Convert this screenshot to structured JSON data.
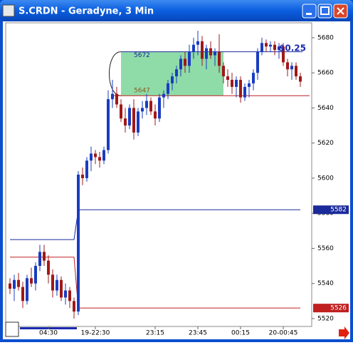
{
  "chart_data": {
    "type": "candlestick",
    "title": "S.CRDN - Geradyne, 3 Min",
    "categories": [
      null,
      null,
      null,
      null,
      null,
      null,
      null,
      null,
      null,
      "04:30",
      null,
      null,
      null,
      null,
      null,
      null,
      null,
      null,
      null,
      null,
      "19-22:30",
      null,
      null,
      null,
      null,
      null,
      null,
      null,
      null,
      null,
      null,
      null,
      null,
      null,
      "23:15",
      null,
      null,
      null,
      null,
      null,
      null,
      null,
      null,
      null,
      "23:45",
      null,
      null,
      null,
      null,
      null,
      null,
      null,
      null,
      null,
      "00:15",
      null,
      null,
      null,
      null,
      null,
      null,
      null,
      null,
      null,
      "20-00:45",
      null,
      null,
      null,
      null
    ],
    "open": [
      5540,
      5537,
      5542,
      5538,
      5530,
      5543,
      5540,
      5550,
      5558,
      5553,
      5545,
      5536,
      5542,
      5532,
      5536,
      5530,
      5524,
      5602,
      5600,
      5610,
      5614,
      5612,
      5610,
      5616,
      5645,
      5648,
      5642,
      5634,
      5630,
      5640,
      5626,
      5638,
      5640,
      5644,
      5638,
      5634,
      5646,
      5648,
      5654,
      5658,
      5662,
      5668,
      5664,
      5672,
      5676,
      5678,
      5668,
      5674,
      5670,
      5672,
      5664,
      5658,
      5656,
      5652,
      5656,
      5646,
      5652,
      5654,
      5660,
      5672,
      5677,
      5675,
      5676,
      5673,
      5675,
      5666,
      5662,
      5664,
      5658
    ],
    "high": [
      5543,
      5545,
      5546,
      5541,
      5545,
      5549,
      5552,
      5562,
      5562,
      5556,
      5548,
      5545,
      5544,
      5540,
      5538,
      5532,
      5604,
      5606,
      5612,
      5618,
      5616,
      5615,
      5618,
      5650,
      5656,
      5652,
      5645,
      5640,
      5642,
      5645,
      5640,
      5644,
      5648,
      5646,
      5642,
      5648,
      5650,
      5656,
      5660,
      5664,
      5670,
      5672,
      5676,
      5680,
      5684,
      5681,
      5676,
      5678,
      5674,
      5682,
      5666,
      5662,
      5660,
      5658,
      5658,
      5654,
      5656,
      5662,
      5674,
      5680,
      5679,
      5678,
      5678,
      5677,
      5677,
      5668,
      5666,
      5666,
      5660
    ],
    "low": [
      5534,
      5530,
      5536,
      5526,
      5528,
      5538,
      5536,
      5547,
      5550,
      5540,
      5532,
      5533,
      5530,
      5528,
      5526,
      5520,
      5522,
      5596,
      5598,
      5604,
      5608,
      5606,
      5608,
      5614,
      5640,
      5640,
      5632,
      5626,
      5628,
      5622,
      5624,
      5634,
      5636,
      5636,
      5630,
      5632,
      5640,
      5645,
      5650,
      5654,
      5658,
      5660,
      5660,
      5668,
      5670,
      5664,
      5662,
      5668,
      5664,
      5660,
      5654,
      5652,
      5648,
      5646,
      5643,
      5644,
      5646,
      5650,
      5656,
      5670,
      5672,
      5672,
      5670,
      5668,
      5664,
      5658,
      5656,
      5656,
      5652
    ],
    "close": [
      5537,
      5542,
      5538,
      5530,
      5543,
      5540,
      5550,
      5558,
      5553,
      5545,
      5536,
      5542,
      5532,
      5536,
      5530,
      5524,
      5602,
      5600,
      5610,
      5614,
      5612,
      5610,
      5616,
      5645,
      5648,
      5642,
      5634,
      5630,
      5640,
      5626,
      5638,
      5640,
      5644,
      5638,
      5634,
      5646,
      5648,
      5654,
      5658,
      5662,
      5668,
      5664,
      5672,
      5676,
      5678,
      5668,
      5674,
      5670,
      5672,
      5664,
      5658,
      5656,
      5652,
      5656,
      5646,
      5652,
      5654,
      5660,
      5672,
      5677,
      5675,
      5676,
      5673,
      5675,
      5666,
      5662,
      5664,
      5658,
      5655
    ],
    "up_color": "#1a3cc0",
    "down_color": "#a01818",
    "ylim": [
      5515.5,
      5688.5
    ],
    "yticks": [
      5520,
      5540,
      5560,
      5580,
      5600,
      5620,
      5640,
      5660,
      5680
    ],
    "upper_band": {
      "color": "#1a2a9a",
      "x": [
        0,
        15,
        16,
        68
      ],
      "y": [
        5565,
        5565,
        5582,
        5582
      ]
    },
    "lower_band": {
      "color": "#c02020",
      "x": [
        0,
        15,
        16,
        68
      ],
      "y": [
        5555,
        5555,
        5526,
        5526
      ]
    },
    "box": {
      "x": [
        26,
        50
      ],
      "top": 5672,
      "bottom": 5647,
      "color": "#8fdca8",
      "top_color": "#1a2a9a",
      "bottom_color": "#c02020"
    },
    "annotation": "$0.25"
  }
}
